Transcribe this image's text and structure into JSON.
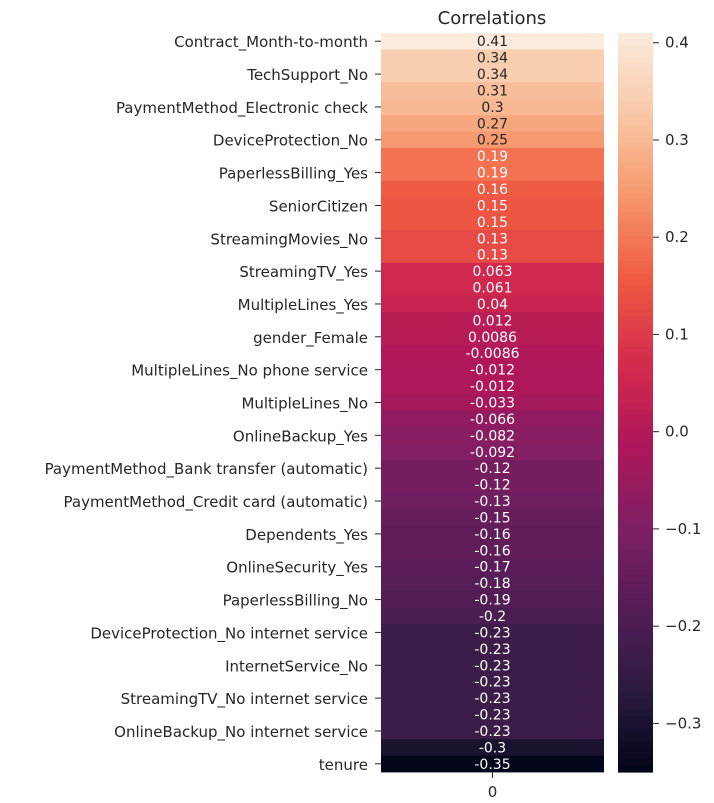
{
  "chart_data": {
    "type": "heatmap",
    "title": "Correlations",
    "column_labels": [
      "0"
    ],
    "row_labels": [
      "Contract_Month-to-month",
      "",
      "TechSupport_No",
      "",
      "PaymentMethod_Electronic check",
      "",
      "DeviceProtection_No",
      "",
      "PaperlessBilling_Yes",
      "",
      "SeniorCitizen",
      "",
      "StreamingMovies_No",
      "",
      "StreamingTV_Yes",
      "",
      "MultipleLines_Yes",
      "",
      "gender_Female",
      "",
      "MultipleLines_No phone service",
      "",
      "MultipleLines_No",
      "",
      "OnlineBackup_Yes",
      "",
      "PaymentMethod_Bank transfer (automatic)",
      "",
      "PaymentMethod_Credit card (automatic)",
      "",
      "Dependents_Yes",
      "",
      "OnlineSecurity_Yes",
      "",
      "PaperlessBilling_No",
      "",
      "DeviceProtection_No internet service",
      "",
      "InternetService_No",
      "",
      "StreamingTV_No internet service",
      "",
      "OnlineBackup_No internet service",
      "",
      "tenure"
    ],
    "values": [
      "0.41",
      "0.34",
      "0.34",
      "0.31",
      "0.3",
      "0.27",
      "0.25",
      "0.19",
      "0.19",
      "0.16",
      "0.15",
      "0.15",
      "0.13",
      "0.13",
      "0.063",
      "0.061",
      "0.04",
      "0.012",
      "0.0086",
      "-0.0086",
      "-0.012",
      "-0.012",
      "-0.033",
      "-0.066",
      "-0.082",
      "-0.092",
      "-0.12",
      "-0.12",
      "-0.13",
      "-0.15",
      "-0.16",
      "-0.16",
      "-0.17",
      "-0.18",
      "-0.19",
      "-0.2",
      "-0.23",
      "-0.23",
      "-0.23",
      "-0.23",
      "-0.23",
      "-0.23",
      "-0.23",
      "-0.3",
      "-0.35"
    ],
    "colorbar": {
      "range": [
        -0.35,
        0.41
      ],
      "ticks": [
        "0.4",
        "0.3",
        "0.2",
        "0.1",
        "0.0",
        "−0.1",
        "−0.2",
        "−0.3"
      ],
      "tick_values": [
        0.4,
        0.3,
        0.2,
        0.1,
        0.0,
        -0.1,
        -0.2,
        -0.3
      ]
    },
    "colormap": "rocket",
    "colors": {
      "stops": [
        "#03051a",
        "#2b1b3f",
        "#551d57",
        "#801e64",
        "#ae1759",
        "#d52b4c",
        "#ef5a42",
        "#f6966b",
        "#f9c7a6",
        "#faebdd"
      ]
    }
  }
}
